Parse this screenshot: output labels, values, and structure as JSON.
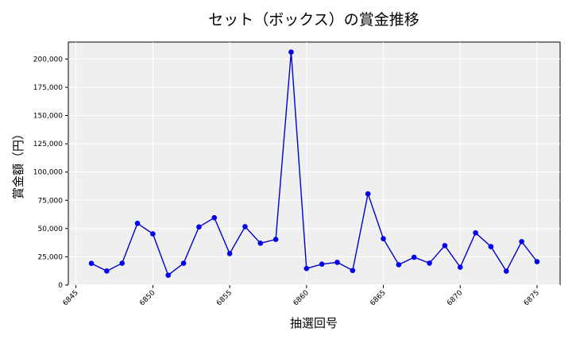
{
  "chart_data": {
    "type": "line",
    "title": "セット（ボックス）の賞金推移",
    "xlabel": "抽選回号",
    "ylabel": "賞金額（円）",
    "xlim": [
      6844.5,
      6876.5
    ],
    "ylim": [
      0,
      215000
    ],
    "x_ticks": [
      6845,
      6850,
      6855,
      6860,
      6865,
      6870,
      6875
    ],
    "y_ticks": [
      0,
      25000,
      50000,
      75000,
      100000,
      125000,
      150000,
      175000,
      200000
    ],
    "y_tick_labels": [
      "0",
      "25,000",
      "50,000",
      "75,000",
      "100,000",
      "125,000",
      "150,000",
      "175,000",
      "200,000"
    ],
    "grid": true,
    "series": [
      {
        "color": "#0000cc",
        "marker_color": "#0000ee",
        "x": [
          6846,
          6847,
          6848,
          6849,
          6850,
          6851,
          6852,
          6853,
          6854,
          6855,
          6856,
          6857,
          6858,
          6859,
          6860,
          6861,
          6862,
          6863,
          6864,
          6865,
          6866,
          6867,
          6868,
          6869,
          6870,
          6871,
          6872,
          6873,
          6874,
          6875
        ],
        "y": [
          19200,
          12400,
          19300,
          54600,
          45300,
          8700,
          19300,
          51400,
          59600,
          27800,
          51700,
          37000,
          40400,
          206200,
          14600,
          18500,
          20100,
          12900,
          80700,
          41000,
          18000,
          24600,
          19400,
          34900,
          15800,
          46200,
          34000,
          12300,
          38400,
          20700
        ]
      }
    ]
  }
}
